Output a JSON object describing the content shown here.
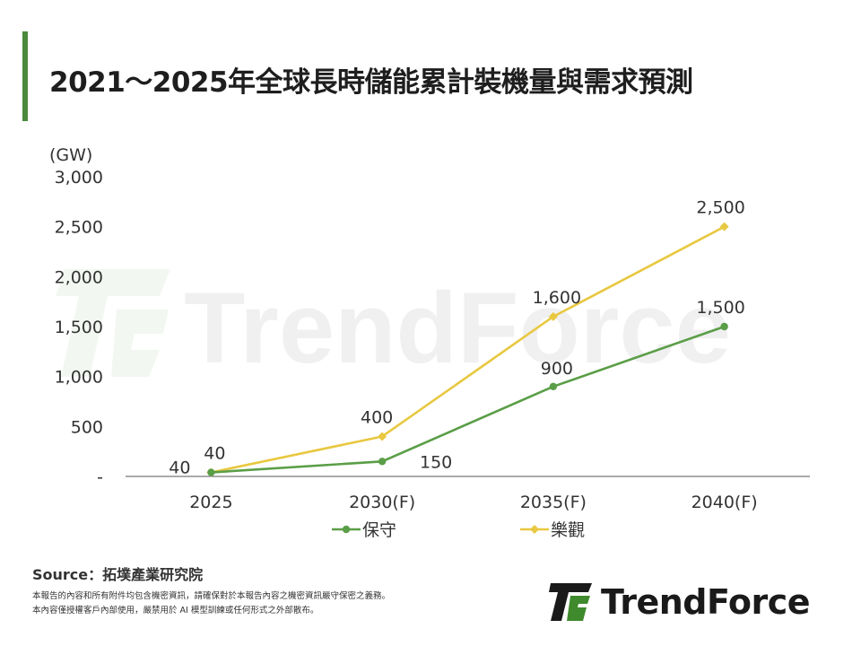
{
  "title": "2021～2025年全球長時儲能累計裝機量與需求預測",
  "watermark": "TrendForce",
  "source": "Source：拓墣產業研究院",
  "disclaimer": [
    "本報告的內容和所有附件均包含機密資訊，請確保對於本報告內容之機密資訊嚴守保密之義務。",
    "本內容僅授權客戶內部使用，嚴禁用於 AI 模型訓練或任何形式之外部散布。"
  ],
  "brand": {
    "name": "TrendForce",
    "logo_color": "#3e8a2c"
  },
  "colors": {
    "accent": "#4a8a3c",
    "conservative": "#5a9e47",
    "optimistic": "#e8c840"
  },
  "chart_data": {
    "type": "line",
    "title": "2021～2025年全球長時儲能累計裝機量與需求預測",
    "ylabel": "(GW)",
    "xlabel": "",
    "categories": [
      "2025",
      "2030(F)",
      "2035(F)",
      "2040(F)"
    ],
    "ylim": [
      0,
      3000
    ],
    "yticks": [
      0,
      500,
      1000,
      1500,
      2000,
      2500,
      3000
    ],
    "ytick_labels": [
      "-",
      "500",
      "1,000",
      "1,500",
      "2,000",
      "2,500",
      "3,000"
    ],
    "grid": false,
    "legend_position": "bottom",
    "series": [
      {
        "name": "保守",
        "values": [
          40,
          150,
          900,
          1500
        ],
        "labels": [
          "40",
          "150",
          "900",
          "1,500"
        ],
        "color": "#5a9e47",
        "marker": "circle"
      },
      {
        "name": "樂觀",
        "values": [
          40,
          400,
          1600,
          2500
        ],
        "labels": [
          "40",
          "400",
          "1,600",
          "2,500"
        ],
        "color": "#e8c840",
        "marker": "diamond"
      }
    ]
  }
}
